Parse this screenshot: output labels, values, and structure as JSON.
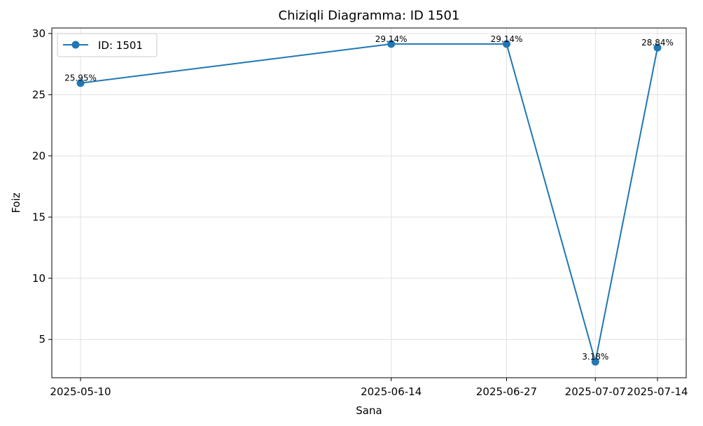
{
  "chart_data": {
    "type": "line",
    "title": "Chiziqli Diagramma: ID 1501",
    "xlabel": "Sana",
    "ylabel": "Foiz",
    "categories": [
      "2025-05-10",
      "2025-06-14",
      "2025-06-27",
      "2025-07-07",
      "2025-07-14"
    ],
    "series": [
      {
        "name": "ID: 1501",
        "values": [
          25.95,
          29.14,
          29.14,
          3.18,
          28.84
        ],
        "labels": [
          "25.95%",
          "29.14%",
          "29.14%",
          "3.18%",
          "28.84%"
        ],
        "color": "#1f77b4"
      }
    ],
    "ylim": [
      1.87,
      30.45
    ],
    "yticks": [
      5,
      10,
      15,
      20,
      25,
      30
    ],
    "grid": true,
    "legend_position": "top-left"
  }
}
